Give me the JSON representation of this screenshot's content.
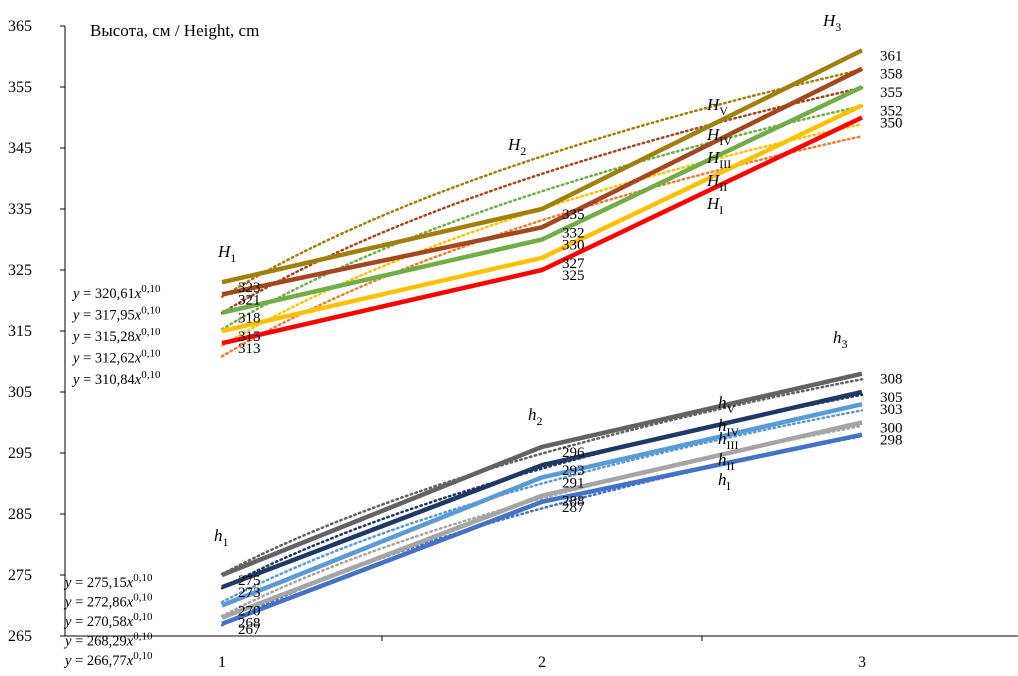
{
  "chart_data": {
    "type": "line",
    "title": "Высота, см / Height, cm",
    "xlabel": "",
    "ylabel": "",
    "ylim": [
      265,
      365
    ],
    "yticks": [
      265,
      275,
      285,
      295,
      305,
      315,
      325,
      335,
      345,
      355,
      365
    ],
    "xlim": [
      1,
      3.5
    ],
    "xticks": [
      1,
      2,
      3
    ],
    "grid": false,
    "legend": "none",
    "x": [
      1,
      2,
      3
    ],
    "series": [
      {
        "group": "upper",
        "color": "#A0800A",
        "values": [
          323,
          335,
          361
        ]
      },
      {
        "group": "upper",
        "color": "#A3481E",
        "values": [
          321,
          332,
          358
        ]
      },
      {
        "group": "upper",
        "color": "#70AD47",
        "values": [
          318,
          330,
          355
        ]
      },
      {
        "group": "upper",
        "color": "#FFC000",
        "values": [
          315,
          327,
          352
        ]
      },
      {
        "group": "upper",
        "color": "#FF0000",
        "values": [
          313,
          325,
          350
        ]
      },
      {
        "group": "lower",
        "color": "#636363",
        "values": [
          275,
          296,
          308
        ]
      },
      {
        "group": "lower",
        "color": "#203864",
        "values": [
          273,
          293,
          305
        ]
      },
      {
        "group": "lower",
        "color": "#5B9BD5",
        "values": [
          270,
          291,
          303
        ]
      },
      {
        "group": "lower",
        "color": "#A5A5A5",
        "values": [
          268,
          288,
          300
        ]
      },
      {
        "group": "lower",
        "color": "#4472C4",
        "values": [
          267,
          287,
          298
        ]
      }
    ],
    "trendlines": [
      {
        "group": "upper",
        "color": "#A0800A",
        "a": 320.61,
        "b": 0.1,
        "x_end": 3
      },
      {
        "group": "upper",
        "color": "#A3481E",
        "a": 317.95,
        "b": 0.1,
        "x_end": 3
      },
      {
        "group": "upper",
        "color": "#70AD47",
        "a": 315.28,
        "b": 0.1,
        "x_end": 3
      },
      {
        "group": "upper",
        "color": "#FFC000",
        "a": 312.62,
        "b": 0.1,
        "x_end": 3
      },
      {
        "group": "upper",
        "color": "#ED7D31",
        "a": 310.84,
        "b": 0.1,
        "x_end": 3
      },
      {
        "group": "lower",
        "color": "#636363",
        "a": 275.15,
        "b": 0.1,
        "x_end": 3
      },
      {
        "group": "lower",
        "color": "#203864",
        "a": 272.86,
        "b": 0.1,
        "x_end": 3
      },
      {
        "group": "lower",
        "color": "#5B9BD5",
        "a": 270.58,
        "b": 0.1,
        "x_end": 3
      },
      {
        "group": "lower",
        "color": "#A5A5A5",
        "a": 268.29,
        "b": 0.1,
        "x_end": 3
      },
      {
        "group": "lower",
        "color": "#4472C4",
        "a": 266.77,
        "b": 0.1,
        "x_end": 3
      }
    ],
    "equations_upper": [
      {
        "pre": "y = 320,61x",
        "sup": "0,10"
      },
      {
        "pre": "y = 317,95x",
        "sup": "0,10"
      },
      {
        "pre": "y = 315,28x",
        "sup": "0,10"
      },
      {
        "pre": "y = 312,62x",
        "sup": "0,10"
      },
      {
        "pre": "y = 310,84x",
        "sup": "0,10"
      }
    ],
    "equations_lower": [
      {
        "pre": "y = 275,15x",
        "sup": "0,10"
      },
      {
        "pre": "y = 272,86x",
        "sup": "0,10"
      },
      {
        "pre": "y = 270,58x",
        "sup": "0,10"
      },
      {
        "pre": "y = 268,29x",
        "sup": "0,10"
      },
      {
        "pre": "y = 266,77x",
        "sup": "0,10"
      }
    ],
    "point_labels": [
      {
        "base": "H",
        "sub": "1"
      },
      {
        "base": "H",
        "sub": "2"
      },
      {
        "base": "H",
        "sub": "3"
      },
      {
        "base": "H",
        "sub": "V"
      },
      {
        "base": "H",
        "sub": "IV"
      },
      {
        "base": "H",
        "sub": "III"
      },
      {
        "base": "H",
        "sub": "II"
      },
      {
        "base": "H",
        "sub": "I"
      },
      {
        "base": "h",
        "sub": "1"
      },
      {
        "base": "h",
        "sub": "2"
      },
      {
        "base": "h",
        "sub": "3"
      },
      {
        "base": "h",
        "sub": "V"
      },
      {
        "base": "h",
        "sub": "IV"
      },
      {
        "base": "h",
        "sub": "III"
      },
      {
        "base": "h",
        "sub": "II"
      },
      {
        "base": "h",
        "sub": "I"
      }
    ]
  }
}
